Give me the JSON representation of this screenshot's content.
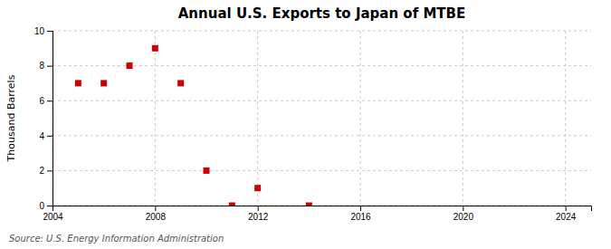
{
  "chart_data": {
    "type": "scatter",
    "title": "Annual U.S. Exports to Japan of MTBE",
    "ylabel": "Thousand Barrels",
    "annotations": [
      "Source: U.S. Energy Information Administration"
    ],
    "x": [
      2005,
      2006,
      2007,
      2008,
      2009,
      2010,
      2011,
      2012,
      2014
    ],
    "values": [
      7,
      7,
      8,
      9,
      7,
      2,
      0,
      1,
      0
    ],
    "color": "#cc0000",
    "marker": "square",
    "xlim": [
      2004,
      2025
    ],
    "ylim": [
      0,
      10
    ],
    "xticks": [
      2004,
      2008,
      2012,
      2016,
      2020,
      2024
    ],
    "yticks": [
      0,
      2,
      4,
      6,
      8,
      10
    ],
    "grid": true
  }
}
